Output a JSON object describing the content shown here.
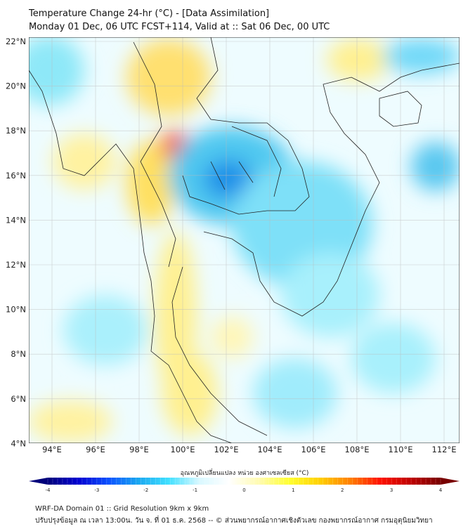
{
  "title": {
    "line1": "Temperature Change 24-hr (°C) - [Data Assimilation]",
    "line2": "Monday 01 Dec, 06 UTC FCST+114, Valid at :: Sat 06 Dec, 00 UTC"
  },
  "map": {
    "lat_labels": [
      "22°N",
      "20°N",
      "18°N",
      "16°N",
      "14°N",
      "12°N",
      "10°N",
      "8°N",
      "6°N",
      "4°N"
    ],
    "lon_labels": [
      "94°E",
      "96°E",
      "98°E",
      "100°E",
      "102°E",
      "104°E",
      "106°E",
      "108°E",
      "110°E",
      "112°E"
    ]
  },
  "colorbar": {
    "label": "อุณหภูมิเปลี่ยนแปลง หน่วย องศาเซลเซียส (°C)",
    "ticks": [
      "-4",
      "-3",
      "-2",
      "-1",
      "0",
      "1",
      "2",
      "3",
      "4"
    ],
    "range": [
      -4,
      4
    ],
    "colors": [
      "#00007a",
      "#0000d0",
      "#0a50ff",
      "#1aa8f0",
      "#40e0ff",
      "#d8f8ff",
      "#ffffff",
      "#fffbb0",
      "#ffff30",
      "#ffd000",
      "#ff8000",
      "#ff1000",
      "#c00000",
      "#780000"
    ]
  },
  "footer": {
    "line1": "WRF-DA Domain 01 :: Grid Resolution 9km x 9km",
    "line2": "ปรับปรุงข้อมูล ณ เวลา 13:00น. วัน จ. ที่ 01 ธ.ค. 2568 -- © ส่วนพยากรณ์อากาศเชิงตัวเลข กองพยากรณ์อากาศ กรมอุตุนิยมวิทยา"
  }
}
